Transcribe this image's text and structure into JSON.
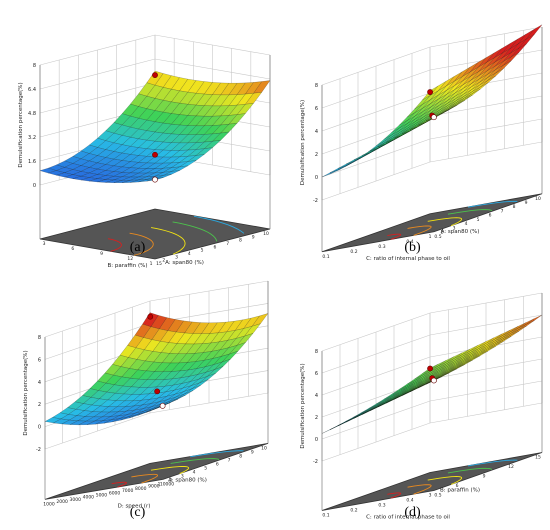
{
  "colors": {
    "high": "#d62020",
    "mid": "#f2e313",
    "low_mid": "#2ecc71",
    "low": "#3344dd",
    "floor": "#555555",
    "grid": "#c8c8c8",
    "point": "#c00000"
  },
  "chart_data": [
    {
      "type": "surface3d",
      "caption": "(a)",
      "zlabel": "Demulsification percentage(%)",
      "xlabel": "A: span80 (%)",
      "ylabel": "B: paraffin (%)",
      "ztick_labels": [
        "0",
        "1.6",
        "3.2",
        "4.8",
        "6.4",
        "8"
      ],
      "xtick_labels": [
        "1",
        "2",
        "3",
        "4",
        "5",
        "6",
        "7",
        "8",
        "9",
        "10"
      ],
      "ytick_labels": [
        "3",
        "6",
        "9",
        "12",
        "15"
      ],
      "zlim": [
        0,
        8
      ]
    },
    {
      "type": "surface3d",
      "caption": "(b)",
      "zlabel": "Demulsification percentage(%)",
      "xlabel": "A: span80 (%)",
      "ylabel": "C: ratio of internal phase to oil",
      "ztick_labels": [
        "-2",
        "0",
        "2",
        "4",
        "6",
        "8"
      ],
      "xtick_labels": [
        "1",
        "2",
        "3",
        "4",
        "5",
        "6",
        "7",
        "8",
        "9",
        "10"
      ],
      "ytick_labels": [
        "0.1",
        "0.2",
        "0.3",
        "0.4",
        "0.5"
      ],
      "zlim": [
        -2,
        8
      ]
    },
    {
      "type": "surface3d",
      "caption": "(c)",
      "zlabel": "Demulsification percentage(%)",
      "xlabel": "A: span80 (%)",
      "ylabel": "D: speed (r)",
      "ztick_labels": [
        "-2",
        "0",
        "2",
        "4",
        "6",
        "8"
      ],
      "xtick_labels": [
        "1",
        "2",
        "3",
        "4",
        "5",
        "6",
        "7",
        "8",
        "9",
        "10"
      ],
      "ytick_labels": [
        "1000",
        "2000",
        "3000",
        "4000",
        "5000",
        "6000",
        "7000",
        "8000",
        "9000",
        "10000"
      ],
      "zlim": [
        -2,
        8
      ]
    },
    {
      "type": "surface3d",
      "caption": "(d)",
      "zlabel": "Demulsification percentage(%)",
      "xlabel": "B: paraffin (%)",
      "ylabel": "C: ratio of internal phase to oil",
      "ztick_labels": [
        "-2",
        "0",
        "2",
        "4",
        "6",
        "8"
      ],
      "xtick_labels": [
        "3",
        "6",
        "9",
        "12",
        "15"
      ],
      "ytick_labels": [
        "0.1",
        "0.2",
        "0.3",
        "0.4",
        "0.5"
      ],
      "zlim": [
        -2,
        8
      ]
    }
  ]
}
